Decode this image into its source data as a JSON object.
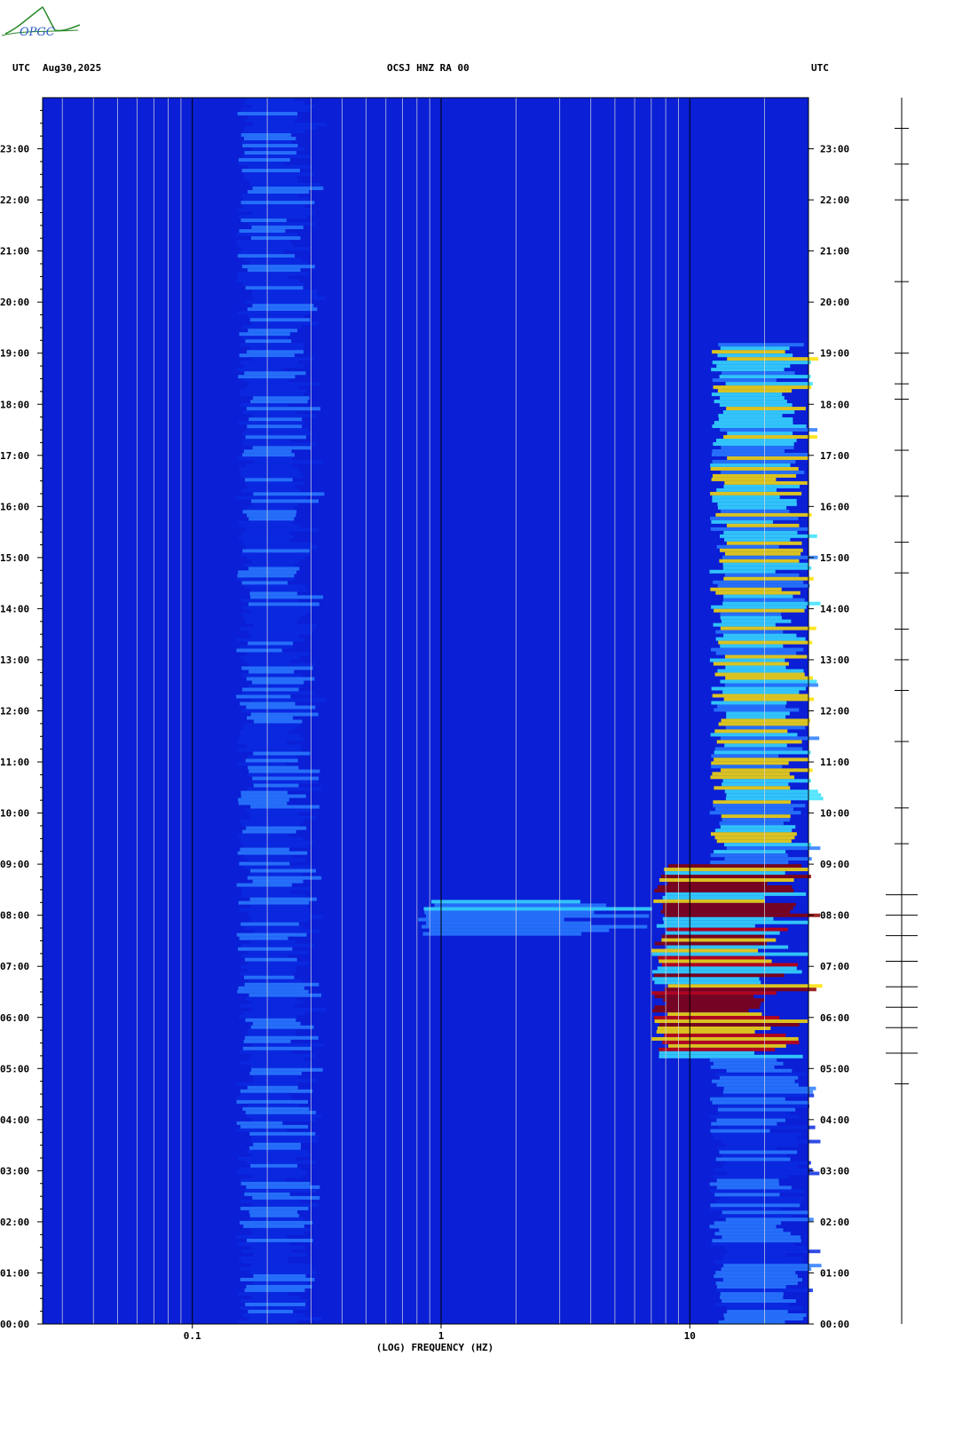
{
  "header": {
    "left_tz": "UTC",
    "date": "Aug30,2025",
    "station": "OCSJ HNZ RA 00",
    "right_tz": "UTC"
  },
  "logo_text": "OPGC",
  "colors": {
    "background_blue": "#0a1fd6",
    "low_energy": "#0a2ae0",
    "mid_energy": "#2a7cff",
    "high_cyan": "#38e0ff",
    "yellow": "#ffe000",
    "red": "#cc0000",
    "dark_red": "#8b0000",
    "grid_white": "#d8d8d8",
    "grid_black": "#000000"
  },
  "chart_data": {
    "type": "heatmap",
    "title": "OCSJ HNZ RA 00",
    "xlabel": "(LOG) FREQUENCY (HZ)",
    "ylabel": "UTC",
    "x_scale": "log",
    "xlim": [
      0.025,
      30
    ],
    "x_ticks": [
      {
        "value": 0.1,
        "label": "0.1"
      },
      {
        "value": 1,
        "label": "1"
      },
      {
        "value": 10,
        "label": "10"
      }
    ],
    "ylim_hours": [
      0,
      24
    ],
    "y_ticks": [
      "00:00",
      "01:00",
      "02:00",
      "03:00",
      "04:00",
      "05:00",
      "06:00",
      "07:00",
      "08:00",
      "09:00",
      "10:00",
      "11:00",
      "12:00",
      "13:00",
      "14:00",
      "15:00",
      "16:00",
      "17:00",
      "18:00",
      "19:00",
      "20:00",
      "21:00",
      "22:00",
      "23:00"
    ],
    "energy_bands": [
      {
        "f_from": 0.15,
        "f_to": 0.3,
        "t_from": 0,
        "t_to": 24,
        "level": 0.35
      },
      {
        "f_from": 7,
        "f_to": 30,
        "t_from": 5.2,
        "t_to": 9.0,
        "level": 1.0
      },
      {
        "f_from": 0.8,
        "f_to": 7,
        "t_from": 7.6,
        "t_to": 8.3,
        "level": 0.55
      },
      {
        "f_from": 12,
        "f_to": 30,
        "t_from": 9.0,
        "t_to": 19.2,
        "level": 0.75
      },
      {
        "f_from": 12,
        "f_to": 30,
        "t_from": 0,
        "t_to": 5.2,
        "level": 0.4
      }
    ],
    "seismogram_events_hours": [
      23.4,
      22.7,
      22.0,
      20.4,
      19.0,
      18.4,
      18.1,
      17.1,
      16.2,
      15.3,
      14.7,
      13.6,
      13.0,
      12.4,
      11.4,
      10.1,
      9.4,
      8.4,
      8.0,
      7.6,
      7.1,
      6.6,
      6.2,
      5.8,
      5.3,
      4.7
    ]
  }
}
